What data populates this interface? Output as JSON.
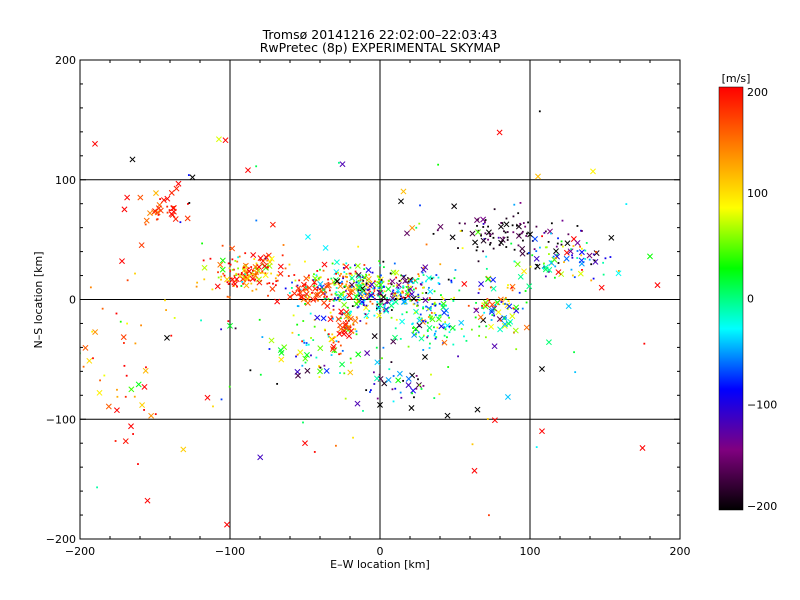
{
  "chart_data": {
    "type": "scatter",
    "title": "Tromsø 20141216 22:02:00–22:03:43",
    "subtitle": "RwPretec (8p) EXPERIMENTAL SKYMAP",
    "xlabel": "E–W location [km]",
    "ylabel": "N–S location [km]",
    "xlim": [
      -200,
      200
    ],
    "ylim": [
      -200,
      200
    ],
    "x_ticks": [
      "−200",
      "−100",
      "0",
      "100",
      "200"
    ],
    "y_ticks": [
      "−200",
      "−100",
      "0",
      "100",
      "200"
    ],
    "grid_values": [
      -100,
      0,
      100
    ],
    "grid": true,
    "colorbar": {
      "label": "[m/s]",
      "range": [
        -200,
        200
      ],
      "ticks": [
        "200",
        "100",
        "0",
        "−100",
        "−200"
      ],
      "colors": [
        "#000000",
        "#800080",
        "#0000ff",
        "#00ffff",
        "#00ff00",
        "#ffff00",
        "#ff8000",
        "#ff0000"
      ]
    },
    "clusters": [
      {
        "x": -88,
        "y": 22,
        "sx": 12,
        "sy": 8,
        "v": 150,
        "sv": 80,
        "n": 150,
        "cross": 0.25
      },
      {
        "x": -20,
        "y": 12,
        "sx": 16,
        "sy": 9,
        "v": 80,
        "sv": 110,
        "n": 200,
        "cross": 0.22
      },
      {
        "x": 5,
        "y": 5,
        "sx": 18,
        "sy": 10,
        "v": -40,
        "sv": 110,
        "n": 200,
        "cross": 0.2
      },
      {
        "x": 35,
        "y": -15,
        "sx": 9,
        "sy": 18,
        "v": 0,
        "sv": 70,
        "n": 120,
        "cross": 0.15
      },
      {
        "x": -35,
        "y": -35,
        "sx": 18,
        "sy": 18,
        "v": 20,
        "sv": 80,
        "n": 90,
        "cross": 0.2
      },
      {
        "x": -48,
        "y": 5,
        "sx": 7,
        "sy": 5,
        "v": 185,
        "sv": 25,
        "n": 40,
        "cross": 0.5
      },
      {
        "x": -25,
        "y": -25,
        "sx": 5,
        "sy": 8,
        "v": 185,
        "sv": 25,
        "n": 30,
        "cross": 0.55
      },
      {
        "x": 78,
        "y": -8,
        "sx": 12,
        "sy": 12,
        "v": 40,
        "sv": 110,
        "n": 90,
        "cross": 0.35
      },
      {
        "x": 80,
        "y": 55,
        "sx": 22,
        "sy": 10,
        "v": -180,
        "sv": 30,
        "n": 90,
        "cross": 0.25
      },
      {
        "x": 125,
        "y": 35,
        "sx": 18,
        "sy": 10,
        "v": -40,
        "sv": 130,
        "n": 90,
        "cross": 0.35
      },
      {
        "x": -145,
        "y": 78,
        "sx": 10,
        "sy": 12,
        "v": 180,
        "sv": 30,
        "n": 35,
        "cross": 0.7
      },
      {
        "x": -170,
        "y": -60,
        "sx": 18,
        "sy": 40,
        "v": 150,
        "sv": 60,
        "n": 45,
        "cross": 0.3
      },
      {
        "x": 15,
        "y": -75,
        "sx": 14,
        "sy": 12,
        "v": -120,
        "sv": 80,
        "n": 35,
        "cross": 0.35
      },
      {
        "x": 0,
        "y": -20,
        "sx": 90,
        "sy": 70,
        "v": 0,
        "sv": 130,
        "n": 110,
        "cross": 0.25
      }
    ],
    "markers": [
      {
        "x": -165,
        "y": 117,
        "v": -200
      },
      {
        "x": -125,
        "y": 102,
        "v": -200
      },
      {
        "x": -88,
        "y": 108,
        "v": 200
      },
      {
        "x": -25,
        "y": 113,
        "v": -120
      },
      {
        "x": 14,
        "y": 82,
        "v": -200
      },
      {
        "x": 142,
        "y": 107,
        "v": 90
      },
      {
        "x": 180,
        "y": 36,
        "v": 30
      },
      {
        "x": 185,
        "y": 12,
        "v": 200
      },
      {
        "x": 175,
        "y": -124,
        "v": 200
      },
      {
        "x": -50,
        "y": -120,
        "v": 200
      },
      {
        "x": -142,
        "y": -32,
        "v": -200
      },
      {
        "x": -115,
        "y": -82,
        "v": 200
      },
      {
        "x": -40,
        "y": -60,
        "v": 40
      },
      {
        "x": 30,
        "y": -48,
        "v": -200
      },
      {
        "x": 45,
        "y": -97,
        "v": -200
      },
      {
        "x": 65,
        "y": -92,
        "v": -200
      },
      {
        "x": 108,
        "y": -58,
        "v": -200
      },
      {
        "x": 0,
        "y": -88,
        "v": -200
      },
      {
        "x": -15,
        "y": -87,
        "v": -120
      },
      {
        "x": -100,
        "y": -22,
        "v": 20
      },
      {
        "x": -157,
        "y": -73,
        "v": 200
      },
      {
        "x": -172,
        "y": 32,
        "v": 200
      },
      {
        "x": 108,
        "y": -110,
        "v": 200
      },
      {
        "x": 63,
        "y": -143,
        "v": 200
      },
      {
        "x": -155,
        "y": -168,
        "v": 200
      },
      {
        "x": -102,
        "y": -188,
        "v": 200
      },
      {
        "x": -190,
        "y": 130,
        "v": 200
      },
      {
        "x": -103,
        "y": 133,
        "v": 200
      }
    ]
  }
}
